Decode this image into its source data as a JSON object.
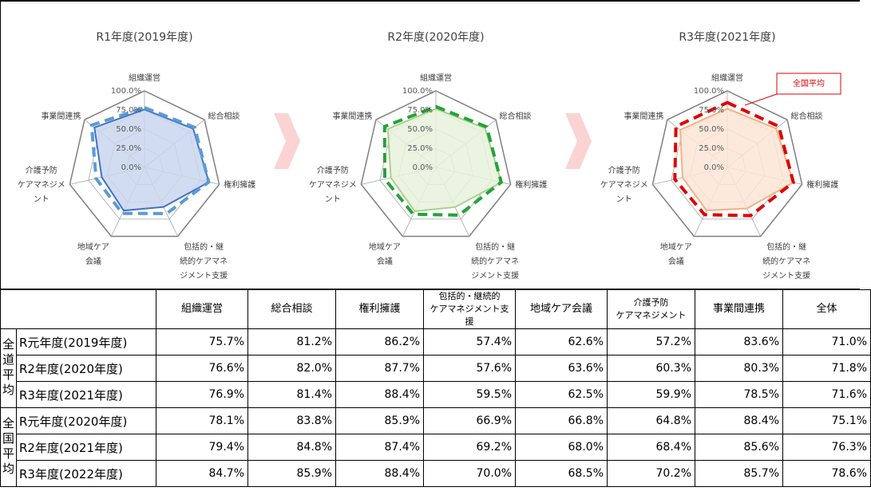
{
  "chart_data": [
    {
      "type": "radar",
      "title": "R1年度(2019年度)",
      "categories": [
        "組織運営",
        "総合相談",
        "権利擁護",
        "包括的・継\n続的ケアマネ\nジメント支援",
        "地域ケア\n会議",
        "介護予防\nケアマネジメ\nント",
        "事業間連携"
      ],
      "rlim": [
        0,
        100
      ],
      "rticks": [
        {
          "value": 0,
          "label": "0.0%"
        },
        {
          "value": 25,
          "label": "25.0%"
        },
        {
          "value": 50,
          "label": "50.0%"
        },
        {
          "value": 75,
          "label": "75.0%"
        },
        {
          "value": 100,
          "label": "100.0%"
        }
      ],
      "series": [
        {
          "color": "#4472c4",
          "fill": "#c9d6ef",
          "style": "solid",
          "values": [
            75.7,
            81.2,
            86.2,
            57.4,
            62.6,
            57.2,
            83.6
          ]
        },
        {
          "color": "#5b9bd5",
          "style": "dashed",
          "values": [
            78.1,
            83.8,
            85.9,
            66.9,
            66.8,
            64.8,
            88.4
          ]
        }
      ]
    },
    {
      "type": "radar",
      "title": "R2年度(2020年度)",
      "categories": [
        "組織運営",
        "総合相談",
        "権利擁護",
        "包括的・継\n続的ケアマネ\nジメント支援",
        "地域ケア\n会議",
        "介護予防\nケアマネジメ\nント",
        "事業間連携"
      ],
      "rlim": [
        0,
        100
      ],
      "rticks": [
        {
          "value": 0,
          "label": "0.0%"
        },
        {
          "value": 25,
          "label": "25.0%"
        },
        {
          "value": 50,
          "label": "50.0%"
        },
        {
          "value": 75,
          "label": "75.0%"
        },
        {
          "value": 100,
          "label": "100.0%"
        }
      ],
      "series": [
        {
          "color": "#a9d18e",
          "fill": "#e6f2dc",
          "style": "solid",
          "values": [
            76.6,
            82.0,
            87.7,
            57.6,
            63.6,
            60.3,
            80.3
          ]
        },
        {
          "color": "#22a33a",
          "style": "dashed",
          "values": [
            79.4,
            84.8,
            87.4,
            69.2,
            68.0,
            68.4,
            85.6
          ]
        }
      ]
    },
    {
      "type": "radar",
      "title": "R3年度(2021年度)",
      "categories": [
        "組織運営",
        "総合相談",
        "権利擁護",
        "包括的・継\n続的ケアマネ\nジメント支援",
        "地域ケア\n会議",
        "介護予防\nケアマネジメ\nント",
        "事業間連携"
      ],
      "rlim": [
        0,
        100
      ],
      "rticks": [
        {
          "value": 0,
          "label": "0.0%"
        },
        {
          "value": 25,
          "label": "25.0%"
        },
        {
          "value": 50,
          "label": "50.0%"
        },
        {
          "value": 75,
          "label": "75.0%"
        },
        {
          "value": 100,
          "label": "100.0%"
        }
      ],
      "annotation": "全国平均",
      "series": [
        {
          "color": "#f4b183",
          "fill": "#fbe5d6",
          "style": "solid",
          "values": [
            76.9,
            81.4,
            88.4,
            59.5,
            62.5,
            59.9,
            78.5
          ]
        },
        {
          "color": "#e00000",
          "style": "dashed",
          "values": [
            84.7,
            85.9,
            88.4,
            70.0,
            68.5,
            70.2,
            85.7
          ]
        }
      ]
    }
  ],
  "table": {
    "header": [
      "組織運営",
      "総合相談",
      "権利擁護",
      "包括的・継続的\nケアマネジメント支援",
      "地域ケア会議",
      "介護予防\nケアマネジメント",
      "事業間連携",
      "全体"
    ],
    "groups": [
      {
        "label": "全道平均",
        "rows": [
          {
            "label": "R元年度(2019年度)",
            "cells": [
              "75.7%",
              "81.2%",
              "86.2%",
              "57.4%",
              "62.6%",
              "57.2%",
              "83.6%",
              "71.0%"
            ]
          },
          {
            "label": "R2年度(2020年度)",
            "cells": [
              "76.6%",
              "82.0%",
              "87.7%",
              "57.6%",
              "63.6%",
              "60.3%",
              "80.3%",
              "71.8%"
            ]
          },
          {
            "label": "R3年度(2021年度)",
            "cells": [
              "76.9%",
              "81.4%",
              "88.4%",
              "59.5%",
              "62.5%",
              "59.9%",
              "78.5%",
              "71.6%"
            ]
          }
        ]
      },
      {
        "label": "全国平均",
        "rows": [
          {
            "label": "R元年度(2020年度)",
            "cells": [
              "78.1%",
              "83.8%",
              "85.9%",
              "66.9%",
              "66.8%",
              "64.8%",
              "88.4%",
              "75.1%"
            ]
          },
          {
            "label": "R2年度(2021年度)",
            "cells": [
              "79.4%",
              "84.8%",
              "87.4%",
              "69.2%",
              "68.0%",
              "68.4%",
              "85.6%",
              "76.3%"
            ]
          },
          {
            "label": "R3年度(2022年度)",
            "cells": [
              "84.7%",
              "85.9%",
              "88.4%",
              "70.0%",
              "68.5%",
              "70.2%",
              "85.7%",
              "78.6%"
            ]
          }
        ]
      }
    ]
  }
}
